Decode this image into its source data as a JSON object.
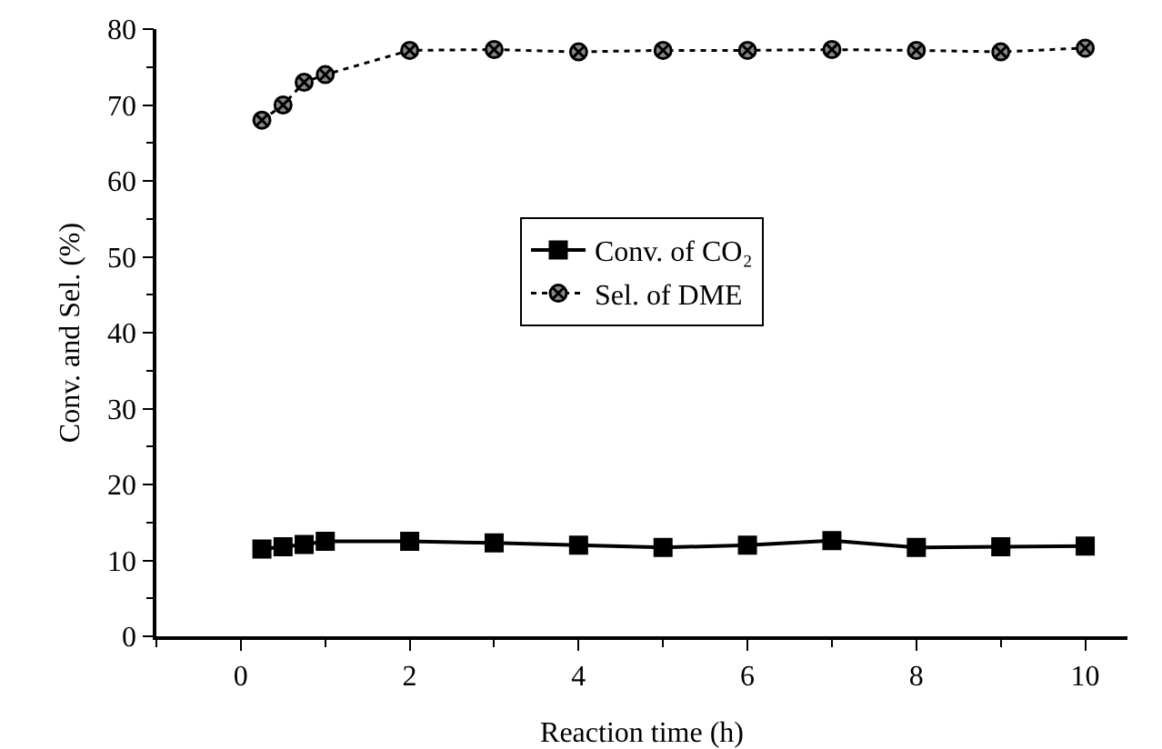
{
  "chart_data": {
    "type": "line",
    "xlabel": "Reaction time (h)",
    "ylabel": "Conv. and Sel. (%)",
    "x": [
      0.25,
      0.5,
      0.75,
      1,
      2,
      3,
      4,
      5,
      6,
      7,
      8,
      9,
      10
    ],
    "series": [
      {
        "name": "Conv. of CO₂",
        "color": "#000000",
        "marker": "square",
        "line_style": "solid",
        "values": [
          11.5,
          11.8,
          12.1,
          12.5,
          12.5,
          12.3,
          12.0,
          11.7,
          12.0,
          12.6,
          11.7,
          11.8,
          11.9
        ]
      },
      {
        "name": "Sel. of DME",
        "color": "#000000",
        "marker": "cross",
        "line_style": "dotted",
        "values": [
          68,
          70,
          73,
          74,
          77.2,
          77.3,
          77.0,
          77.2,
          77.2,
          77.3,
          77.2,
          77.0,
          77.5
        ]
      }
    ],
    "xlim": [
      -1,
      10.5
    ],
    "xticks": [
      0,
      2,
      4,
      6,
      8,
      10
    ],
    "ylim": [
      0,
      80
    ],
    "yticks": [
      0,
      10,
      20,
      30,
      40,
      50,
      60,
      70,
      80
    ],
    "grid": false,
    "legend": "center"
  }
}
